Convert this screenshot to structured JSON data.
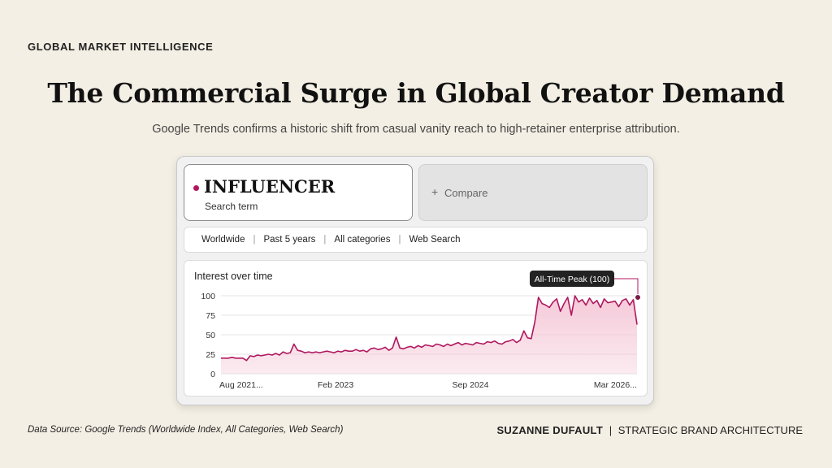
{
  "eyebrow": "GLOBAL MARKET INTELLIGENCE",
  "title": "The Commercial Surge in Global Creator Demand",
  "subtitle": "Google Trends confirms a historic shift from casual vanity reach to high-retainer enterprise attribution.",
  "search": {
    "term": "INFLUENCER",
    "term_type": "Search term",
    "term_color": "#b0175e",
    "compare_label": "Compare",
    "compare_icon": "plus-icon"
  },
  "filters": [
    "Worldwide",
    "Past 5 years",
    "All categories",
    "Web Search"
  ],
  "chart_data": {
    "type": "line",
    "title": "Interest over time",
    "xlabel": "",
    "ylabel": "",
    "ylim": [
      0,
      100
    ],
    "yticks": [
      "0",
      "25",
      "50",
      "75",
      "100"
    ],
    "xticks": [
      "Aug 2021...",
      "Feb 2023",
      "Sep 2024",
      "Mar 2026..."
    ],
    "line_color": "#b0175e",
    "fill_color": "#f4c6d6",
    "grid": "horizontal",
    "annotation": "All-Time Peak (100)",
    "series": [
      {
        "values": [
          20,
          20,
          20,
          21,
          20,
          20,
          20,
          17,
          23,
          22,
          24,
          23,
          24,
          25,
          24,
          26,
          24,
          28,
          26,
          27,
          38,
          30,
          29,
          27,
          28,
          27,
          28,
          27,
          28,
          29,
          28,
          27,
          29,
          28,
          30,
          29,
          29,
          31,
          29,
          30,
          28,
          32,
          33,
          31,
          32,
          34,
          30,
          33,
          47,
          33,
          32,
          34,
          35,
          33,
          36,
          34,
          37,
          36,
          35,
          38,
          37,
          35,
          38,
          36,
          38,
          40,
          37,
          39,
          38,
          37,
          40,
          39,
          38,
          41,
          40,
          42,
          39,
          38,
          41,
          42,
          44,
          40,
          43,
          55,
          46,
          45,
          66,
          98,
          90,
          88,
          85,
          92,
          96,
          80,
          90,
          98,
          75,
          100,
          92,
          95,
          88,
          97,
          90,
          94,
          85,
          96,
          91,
          92,
          93,
          86,
          94,
          96,
          88,
          95,
          63
        ]
      }
    ]
  },
  "footer": {
    "source": "Data Source: Google Trends (Worldwide Index, All Categories, Web Search)",
    "author": "SUZANNE DUFAULT",
    "separator": "|",
    "org": "STRATEGIC BRAND ARCHITECTURE"
  }
}
